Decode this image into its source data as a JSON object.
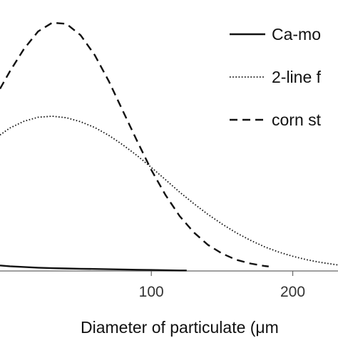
{
  "chart_data": {
    "type": "line",
    "xlabel": "Diameter of particulate (μm",
    "ylabel": "",
    "xlim": [
      -7,
      232
    ],
    "ylim": [
      0,
      1
    ],
    "x_ticks": [
      100,
      200
    ],
    "x_tick_labels": [
      "100",
      "200"
    ],
    "grid": false,
    "legend_position": "top-right",
    "colors": {
      "lines": "#111111",
      "text": "#111111",
      "ticks": "#333333"
    },
    "series": [
      {
        "name": "Ca-mo",
        "style": "solid",
        "x": [
          -7,
          0,
          10,
          20,
          30,
          40,
          50,
          60,
          70,
          80,
          90,
          100,
          110,
          120,
          125
        ],
        "y": [
          0.022,
          0.019,
          0.016,
          0.013,
          0.011,
          0.01,
          0.009,
          0.008,
          0.007,
          0.006,
          0.005,
          0.004,
          0.003,
          0.002,
          0.002
        ]
      },
      {
        "name": "2-line f",
        "style": "dotted",
        "x": [
          -7,
          0,
          10,
          20,
          30,
          40,
          50,
          60,
          70,
          80,
          90,
          100,
          110,
          120,
          130,
          140,
          150,
          160,
          170,
          180,
          190,
          200,
          210,
          220,
          232
        ],
        "y": [
          0.545,
          0.573,
          0.6,
          0.616,
          0.62,
          0.614,
          0.598,
          0.575,
          0.543,
          0.505,
          0.462,
          0.415,
          0.366,
          0.316,
          0.27,
          0.227,
          0.188,
          0.153,
          0.123,
          0.097,
          0.076,
          0.059,
          0.045,
          0.034,
          0.024
        ]
      },
      {
        "name": "corn st",
        "style": "dashed",
        "x": [
          -7,
          0,
          10,
          20,
          30,
          40,
          50,
          60,
          70,
          80,
          90,
          100,
          110,
          120,
          130,
          140,
          150,
          160,
          170,
          180,
          183
        ],
        "y": [
          0.73,
          0.8,
          0.89,
          0.96,
          0.995,
          0.99,
          0.945,
          0.865,
          0.76,
          0.64,
          0.52,
          0.405,
          0.305,
          0.22,
          0.155,
          0.105,
          0.07,
          0.045,
          0.03,
          0.02,
          0.018
        ]
      }
    ]
  }
}
